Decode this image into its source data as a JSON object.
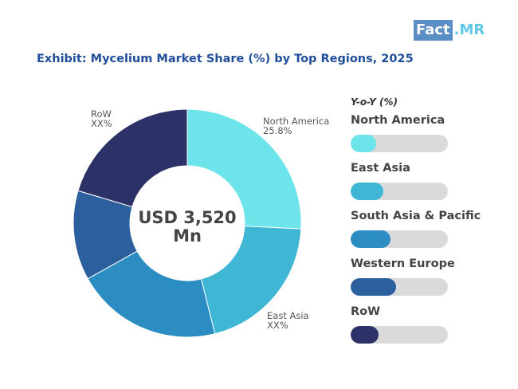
{
  "logo": {
    "part1": "Fact",
    "part2": ".MR"
  },
  "title": "Exhibit:  Mycelium Market Share (%) by Top Regions, 2025",
  "chart_data": {
    "type": "pie",
    "donut": true,
    "center_label": [
      "USD 3,520",
      "Mn"
    ],
    "slices": [
      {
        "label": "North America",
        "value_text": "25.8%",
        "share": 25.8,
        "color": "#6ce4ea"
      },
      {
        "label": "East Asia",
        "value_text": "XX%",
        "share": 20.3,
        "color": "#3fb7d4"
      },
      {
        "label": "South Asia & Pacific",
        "share": 20.8,
        "color": "#2b8dc1"
      },
      {
        "label": "Western Europe",
        "share": 12.7,
        "color": "#2b5f9e"
      },
      {
        "label": "RoW",
        "value_text": "XX%",
        "share": 20.4,
        "color": "#2c3168"
      }
    ],
    "legend": {
      "title": "Y-o-Y (%)",
      "items": [
        {
          "label": "North America",
          "value": 0.26,
          "color": "#6ce4ea"
        },
        {
          "label": "East Asia",
          "value": 0.34,
          "color": "#3fb7d4"
        },
        {
          "label": "South Asia & Pacific",
          "value": 0.41,
          "color": "#2b8dc1"
        },
        {
          "label": "Western Europe",
          "value": 0.47,
          "color": "#2b5f9e"
        },
        {
          "label": "RoW",
          "value": 0.29,
          "color": "#2c3168"
        }
      ]
    }
  }
}
